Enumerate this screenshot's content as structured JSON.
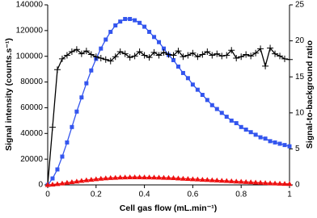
{
  "chart_data": {
    "type": "line",
    "xlabel": "Cell gas flow (mL.min⁻¹)",
    "ylabel": "Signal intensity (counts.s⁻¹)",
    "y2label": "Signal-to-background ratio",
    "x": [
      0,
      0.02,
      0.04,
      0.06,
      0.08,
      0.1,
      0.12,
      0.14,
      0.16,
      0.18,
      0.2,
      0.22,
      0.24,
      0.26,
      0.28,
      0.3,
      0.32,
      0.34,
      0.36,
      0.38,
      0.4,
      0.42,
      0.44,
      0.46,
      0.48,
      0.5,
      0.52,
      0.54,
      0.56,
      0.58,
      0.6,
      0.62,
      0.64,
      0.66,
      0.68,
      0.7,
      0.72,
      0.74,
      0.76,
      0.78,
      0.8,
      0.82,
      0.84,
      0.86,
      0.88,
      0.9,
      0.92,
      0.94,
      0.96,
      0.98,
      1
    ],
    "xlim": [
      0,
      1
    ],
    "xticks": [
      0,
      0.2,
      0.4,
      0.6,
      0.8,
      1
    ],
    "ylim": [
      0,
      140000
    ],
    "yticks": [
      0,
      20000,
      40000,
      60000,
      80000,
      100000,
      120000,
      140000
    ],
    "y2lim": [
      0,
      25
    ],
    "y2ticks": [
      0,
      5,
      10,
      15,
      20,
      25
    ],
    "series": [
      {
        "color": "#3355ee",
        "marker": "square",
        "values": [
          0,
          5000,
          12000,
          22000,
          33000,
          45000,
          57000,
          68000,
          79000,
          89000,
          98000,
          106000,
          113000,
          119000,
          124000,
          127000,
          129000,
          129000,
          128000,
          126000,
          123000,
          119000,
          115000,
          111000,
          106000,
          101000,
          97000,
          92000,
          87000,
          83000,
          78000,
          74000,
          70000,
          66000,
          62000,
          59000,
          56000,
          53000,
          50000,
          48000,
          45000,
          43000,
          41000,
          39000,
          37000,
          36000,
          34000,
          33000,
          32000,
          31000,
          30000
        ]
      },
      {
        "color": "#000000",
        "marker": "cross",
        "axis": "y2",
        "values": [
          0,
          8,
          16,
          17.5,
          18,
          18.5,
          18.8,
          18.2,
          18.6,
          18.1,
          17.8,
          17.6,
          17.4,
          17.2,
          17.8,
          18.5,
          18.2,
          17.7,
          17.9,
          18.5,
          18,
          17.7,
          18.4,
          18,
          18.4,
          18.1,
          18,
          18.6,
          17.8,
          18,
          18.3,
          17.8,
          18.1,
          18.5,
          18,
          18.2,
          17.9,
          18,
          18.7,
          17.6,
          17.8,
          18.1,
          17.9,
          18.3,
          18.9,
          16.5,
          19,
          18.2,
          17.9,
          17.5,
          17.4
        ]
      },
      {
        "color": "#ee1111",
        "marker": "triangle",
        "values": [
          0,
          300,
          700,
          1200,
          1700,
          2200,
          2700,
          3200,
          3700,
          4100,
          4500,
          4900,
          5200,
          5400,
          5600,
          5800,
          5900,
          6000,
          6000,
          6000,
          5900,
          5900,
          5800,
          5700,
          5600,
          5500,
          5300,
          5100,
          4900,
          4700,
          4500,
          4300,
          4100,
          3900,
          3700,
          3500,
          3300,
          3100,
          2900,
          2700,
          2500,
          2300,
          2100,
          1900,
          1700,
          1500,
          1300,
          1200,
          1000,
          900,
          800
        ]
      }
    ]
  }
}
